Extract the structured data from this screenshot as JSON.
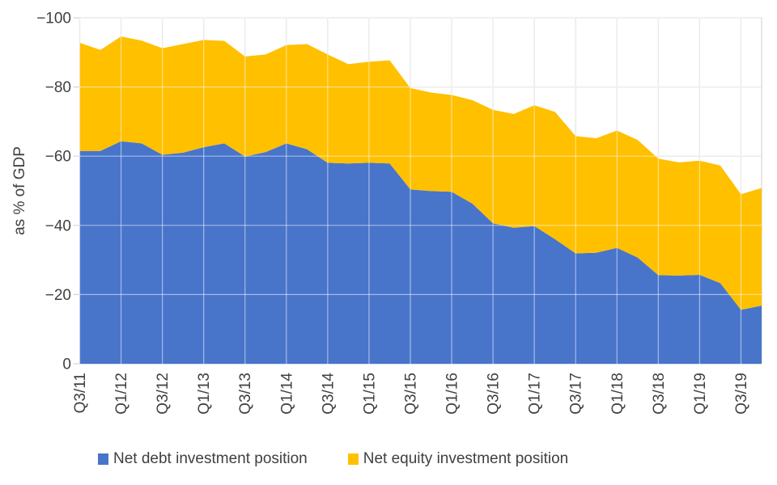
{
  "chart_data": {
    "type": "area",
    "stacked": true,
    "title": "",
    "xlabel": "",
    "ylabel": "as % of GDP",
    "ylim": [
      0,
      -100
    ],
    "grid": true,
    "legend_position": "bottom",
    "y_ticks": [
      0,
      -20,
      -40,
      -60,
      -80,
      -100
    ],
    "y_tick_labels": [
      "0",
      "−20",
      "−40",
      "−60",
      "−80",
      "−100"
    ],
    "x_tick_every": 2,
    "categories": [
      "Q3/11",
      "Q4/11",
      "Q1/12",
      "Q2/12",
      "Q3/12",
      "Q4/12",
      "Q1/13",
      "Q2/13",
      "Q3/13",
      "Q4/13",
      "Q1/14",
      "Q2/14",
      "Q3/14",
      "Q4/14",
      "Q1/15",
      "Q2/15",
      "Q3/15",
      "Q4/15",
      "Q1/16",
      "Q2/16",
      "Q3/16",
      "Q4/16",
      "Q1/17",
      "Q2/17",
      "Q3/17",
      "Q4/17",
      "Q1/18",
      "Q2/18",
      "Q3/18",
      "Q4/18",
      "Q1/19",
      "Q2/19",
      "Q3/19",
      "Q4/19"
    ],
    "series": [
      {
        "name": "Net debt investment position",
        "color": "#4875CA",
        "values": [
          -61.5,
          -61.5,
          -64.3,
          -63.7,
          -60.4,
          -61.0,
          -62.6,
          -63.7,
          -59.9,
          -61.2,
          -63.7,
          -62.0,
          -58.1,
          -57.9,
          -58.1,
          -57.9,
          -50.4,
          -49.9,
          -49.7,
          -46.3,
          -40.6,
          -39.3,
          -39.8,
          -36.0,
          -31.9,
          -32.1,
          -33.5,
          -30.7,
          -25.6,
          -25.5,
          -25.7,
          -23.3,
          -15.6,
          -16.8
        ]
      },
      {
        "name": "Net equity investment position",
        "color": "#FFC000",
        "values": [
          -31.3,
          -29.2,
          -30.3,
          -29.7,
          -30.8,
          -31.4,
          -31.0,
          -29.6,
          -28.9,
          -28.2,
          -28.4,
          -30.4,
          -31.3,
          -28.7,
          -29.2,
          -29.8,
          -29.3,
          -28.5,
          -28.0,
          -29.9,
          -32.8,
          -32.9,
          -34.9,
          -36.8,
          -33.9,
          -33.1,
          -33.9,
          -34.0,
          -33.7,
          -32.7,
          -33.0,
          -34.0,
          -33.4,
          -34.0
        ]
      }
    ],
    "colors": {
      "grid": "#D5D5D5",
      "grid_over_area": "rgba(255,255,255,0.5)",
      "tick_text": "#404040"
    }
  },
  "legend": {
    "items": [
      {
        "label": "Net debt investment position",
        "color": "#4875CA"
      },
      {
        "label": "Net equity investment position",
        "color": "#FFC000"
      }
    ]
  }
}
